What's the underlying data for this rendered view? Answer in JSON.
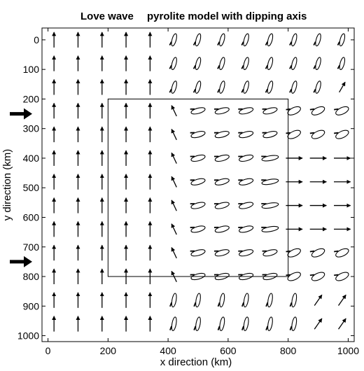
{
  "chart_data": {
    "type": "particle-motion-field",
    "title_left": "Love wave",
    "title_right": "pyrolite model with dipping axis",
    "xlabel": "x  direction (km)",
    "ylabel": "y  direction (km)",
    "x_ticks": [
      0,
      200,
      400,
      600,
      800,
      1000
    ],
    "y_ticks": [
      0,
      100,
      200,
      300,
      400,
      500,
      600,
      700,
      800,
      900,
      1000
    ],
    "xlim": [
      -20,
      1020
    ],
    "ylim": [
      -40,
      1020
    ],
    "y_inverted": true,
    "grid": false,
    "region_box": {
      "x": [
        200,
        800
      ],
      "y": [
        200,
        800
      ]
    },
    "incidence_arrows_y": [
      250,
      750
    ],
    "grid_x": [
      20,
      100,
      180,
      260,
      340,
      420,
      500,
      580,
      660,
      740,
      820,
      900,
      980
    ],
    "grid_y": [
      0,
      80,
      160,
      240,
      320,
      400,
      480,
      560,
      640,
      720,
      800,
      880,
      960
    ],
    "marker_legend": {
      "symbols": [
        "arrow",
        "ellipse"
      ],
      "fields": [
        "x",
        "y",
        "type",
        "angle_deg",
        "length_km",
        "minor_km"
      ]
    },
    "markers": []
  }
}
